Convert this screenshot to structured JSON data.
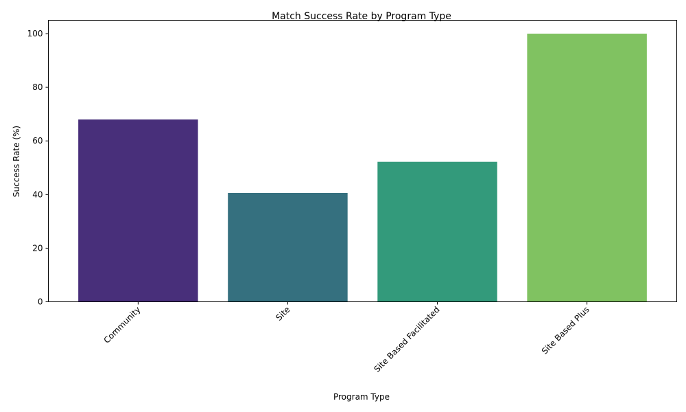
{
  "chart_data": {
    "type": "bar",
    "title": "Match Success Rate by Program Type",
    "xlabel": "Program Type",
    "ylabel": "Success Rate (%)",
    "categories": [
      "Community",
      "Site",
      "Site Based Facilitated",
      "Site Based Plus"
    ],
    "values": [
      68.0,
      40.6,
      52.2,
      100.0
    ],
    "colors": [
      "#482f7a",
      "#35707f",
      "#339a7b",
      "#80c261"
    ],
    "ylim": [
      0,
      105
    ],
    "yticks": [
      0,
      20,
      40,
      60,
      80,
      100
    ],
    "x_tick_rotation_deg": 45,
    "grid": false,
    "legend": "none"
  }
}
